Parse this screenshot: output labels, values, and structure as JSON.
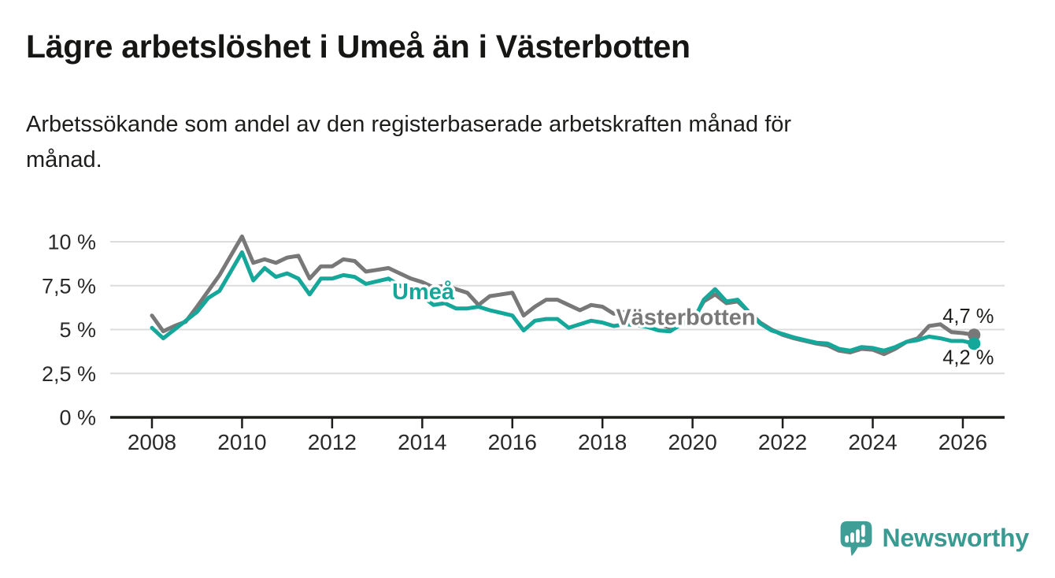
{
  "header": {
    "title": "Lägre arbetslöshet i Umeå än i Västerbotten",
    "subtitle_line1": "Arbetssökande som andel av den registerbaserade arbetskraften månad för",
    "subtitle_line2": "månad."
  },
  "chart_data": {
    "type": "line",
    "title": "Lägre arbetslöshet i Umeå än i Västerbotten",
    "xlabel": "",
    "ylabel": "Arbetssökande som andel av den registerbaserade arbetskraften",
    "x_start": 2008.0,
    "x_step": 0.25,
    "xlim": [
      2007.05,
      2026.95
    ],
    "ylim": [
      0,
      12.1
    ],
    "grid": true,
    "legend_position": "inline-labels",
    "x_ticks": [
      2008,
      2010,
      2012,
      2014,
      2016,
      2018,
      2020,
      2022,
      2024,
      2026
    ],
    "y_ticks": [
      {
        "value": 0,
        "label": "0 %"
      },
      {
        "value": 2.5,
        "label": "2,5 %"
      },
      {
        "value": 5,
        "label": "5 %"
      },
      {
        "value": 7.5,
        "label": "7,5 %"
      },
      {
        "value": 10,
        "label": "10 %"
      }
    ],
    "series": [
      {
        "name": "Västerbotten",
        "color": "#787878",
        "inline_label": {
          "text": "Västerbotten",
          "x": 2018.3,
          "y": 5.28
        },
        "end_label": {
          "text": "4,7 %",
          "x": 2025.55,
          "y": 5.38
        },
        "end_value": 4.7,
        "values": [
          5.8,
          4.9,
          5.2,
          5.45,
          6.3,
          7.2,
          8.1,
          9.2,
          10.3,
          8.8,
          9.0,
          8.8,
          9.1,
          9.2,
          7.9,
          8.6,
          8.6,
          9.0,
          8.9,
          8.3,
          8.4,
          8.5,
          8.2,
          7.9,
          7.7,
          7.4,
          7.5,
          7.3,
          7.1,
          6.4,
          6.9,
          7.0,
          7.1,
          5.8,
          6.3,
          6.7,
          6.7,
          6.4,
          6.1,
          6.4,
          6.3,
          5.9,
          6.0,
          5.9,
          5.7,
          5.3,
          5.1,
          5.4,
          5.5,
          6.6,
          7.0,
          6.5,
          6.6,
          6.0,
          5.4,
          5.0,
          4.7,
          4.5,
          4.35,
          4.2,
          4.1,
          3.8,
          3.7,
          3.9,
          3.85,
          3.6,
          3.9,
          4.3,
          4.5,
          5.2,
          5.3,
          4.85,
          4.8,
          4.7
        ]
      },
      {
        "name": "Umeå",
        "color": "#15a79a",
        "inline_label": {
          "text": "Umeå",
          "x": 2013.33,
          "y": 6.72
        },
        "end_label": {
          "text": "4,2 %",
          "x": 2025.55,
          "y": 3.02
        },
        "end_value": 4.2,
        "values": [
          5.1,
          4.5,
          5.0,
          5.5,
          6.0,
          6.8,
          7.2,
          8.3,
          9.4,
          7.8,
          8.5,
          8.0,
          8.2,
          7.9,
          7.0,
          7.9,
          7.9,
          8.1,
          8.0,
          7.6,
          7.75,
          7.9,
          7.5,
          7.2,
          6.9,
          6.4,
          6.5,
          6.2,
          6.2,
          6.3,
          6.1,
          5.95,
          5.8,
          4.95,
          5.5,
          5.6,
          5.6,
          5.1,
          5.3,
          5.5,
          5.4,
          5.2,
          5.3,
          5.25,
          5.15,
          4.95,
          4.9,
          5.3,
          5.4,
          6.7,
          7.3,
          6.6,
          6.7,
          6.0,
          5.35,
          4.95,
          4.75,
          4.55,
          4.4,
          4.25,
          4.2,
          3.9,
          3.8,
          4.0,
          3.95,
          3.8,
          4.0,
          4.3,
          4.4,
          4.6,
          4.5,
          4.35,
          4.35,
          4.2
        ]
      }
    ]
  },
  "branding": {
    "logo_text": "Newsworthy",
    "logo_icon": "bar-chart-speech-bubble",
    "logo_color": "#3f9e96"
  },
  "colors": {
    "umea_line": "#15a79a",
    "vasterbotten_line": "#787878",
    "axis_text": "#2a2a29",
    "gridline": "#dcdcdc",
    "axis_line": "#1d1d1b",
    "annotation_text": "#1d1d1b"
  }
}
